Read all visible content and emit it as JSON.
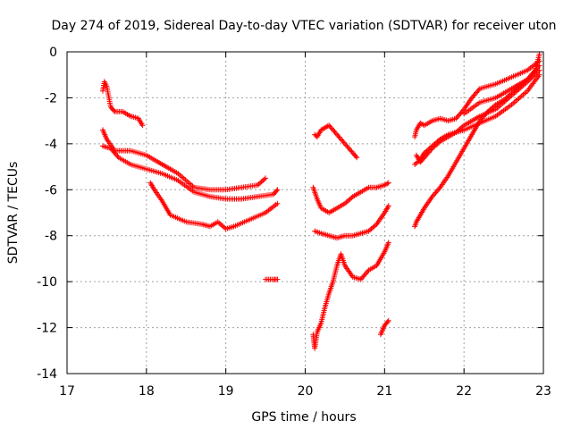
{
  "chart_data": {
    "type": "scatter",
    "title": "Day 274 of 2019, Sidereal Day-to-day VTEC variation (SDTVAR) for receiver uton",
    "xlabel": "GPS time / hours",
    "ylabel": "SDTVAR / TECUs",
    "xlim": [
      17,
      23
    ],
    "ylim": [
      -14,
      0
    ],
    "xticks": [
      17,
      18,
      19,
      20,
      21,
      22,
      23
    ],
    "yticks": [
      0,
      -2,
      -4,
      -6,
      -8,
      -10,
      -12,
      -14
    ],
    "grid": true,
    "marker": "+",
    "color": "#ff0000",
    "series": [
      {
        "name": "s1",
        "x": [
          17.45,
          17.47,
          17.5,
          17.55,
          17.6,
          17.7,
          17.8,
          17.9,
          17.95
        ],
        "y": [
          -1.7,
          -1.3,
          -1.5,
          -2.4,
          -2.6,
          -2.6,
          -2.8,
          -2.9,
          -3.2
        ]
      },
      {
        "name": "s2",
        "x": [
          17.45,
          17.5,
          17.6,
          17.7,
          17.8,
          18.0,
          18.2,
          18.4,
          18.6,
          18.8,
          19.0,
          19.2,
          19.4,
          19.5
        ],
        "y": [
          -3.4,
          -3.8,
          -4.3,
          -4.3,
          -4.3,
          -4.5,
          -4.9,
          -5.3,
          -5.9,
          -6.0,
          -6.0,
          -5.9,
          -5.8,
          -5.5
        ]
      },
      {
        "name": "s3",
        "x": [
          17.45,
          17.55,
          17.65,
          17.8,
          18.0,
          18.2,
          18.4,
          18.6,
          18.8,
          19.0,
          19.2,
          19.4,
          19.6,
          19.65
        ],
        "y": [
          -4.1,
          -4.2,
          -4.6,
          -4.9,
          -5.1,
          -5.3,
          -5.6,
          -6.1,
          -6.3,
          -6.4,
          -6.4,
          -6.3,
          -6.2,
          -6.0
        ]
      },
      {
        "name": "s4",
        "x": [
          18.05,
          18.1,
          18.2,
          18.3,
          18.5,
          18.7,
          18.8,
          18.9,
          19.0,
          19.1,
          19.3,
          19.5,
          19.65
        ],
        "y": [
          -5.7,
          -6.0,
          -6.5,
          -7.1,
          -7.4,
          -7.5,
          -7.6,
          -7.4,
          -7.7,
          -7.6,
          -7.3,
          -7.0,
          -6.6
        ]
      },
      {
        "name": "s5",
        "x": [
          19.5,
          19.6,
          19.65
        ],
        "y": [
          -9.9,
          -9.9,
          -9.9
        ]
      },
      {
        "name": "s6",
        "x": [
          20.12,
          20.15,
          20.2,
          20.25,
          20.3,
          20.4,
          20.5,
          20.6,
          20.65
        ],
        "y": [
          -3.6,
          -3.7,
          -3.4,
          -3.3,
          -3.2,
          -3.6,
          -4.0,
          -4.4,
          -4.6
        ]
      },
      {
        "name": "s7",
        "x": [
          20.1,
          20.15,
          20.2,
          20.3,
          20.4,
          20.5,
          20.6,
          20.7,
          20.8,
          20.9,
          21.0,
          21.05
        ],
        "y": [
          -5.9,
          -6.4,
          -6.8,
          -7.0,
          -6.8,
          -6.6,
          -6.3,
          -6.1,
          -5.9,
          -5.9,
          -5.8,
          -5.7
        ]
      },
      {
        "name": "s8",
        "x": [
          20.12,
          20.2,
          20.3,
          20.4,
          20.5,
          20.6,
          20.7,
          20.8,
          20.9,
          21.0,
          21.05
        ],
        "y": [
          -7.8,
          -7.9,
          -8.0,
          -8.1,
          -8.0,
          -8.0,
          -7.9,
          -7.8,
          -7.5,
          -7.0,
          -6.7
        ]
      },
      {
        "name": "s9",
        "x": [
          20.1,
          20.12,
          20.15,
          20.2,
          20.25,
          20.3,
          20.35,
          20.4,
          20.45,
          20.5,
          20.6,
          20.7,
          20.8,
          20.9,
          21.0,
          21.05
        ],
        "y": [
          -12.3,
          -12.9,
          -12.2,
          -11.8,
          -11.1,
          -10.5,
          -10.0,
          -9.3,
          -8.8,
          -9.3,
          -9.8,
          -9.9,
          -9.5,
          -9.3,
          -8.7,
          -8.3
        ]
      },
      {
        "name": "s10",
        "x": [
          20.95,
          21.0,
          21.05
        ],
        "y": [
          -12.3,
          -11.9,
          -11.7
        ]
      },
      {
        "name": "s11",
        "x": [
          21.38,
          21.4,
          21.45,
          21.5,
          21.6,
          21.7,
          21.8,
          21.9,
          22.0,
          22.1,
          22.2,
          22.4,
          22.6,
          22.8,
          22.95
        ],
        "y": [
          -3.7,
          -3.4,
          -3.1,
          -3.2,
          -3.0,
          -2.9,
          -3.0,
          -2.9,
          -2.5,
          -2.0,
          -1.6,
          -1.4,
          -1.1,
          -0.8,
          -0.4
        ]
      },
      {
        "name": "s12",
        "x": [
          21.4,
          21.45,
          21.5,
          21.6,
          21.7,
          21.8,
          21.9,
          22.0,
          22.2,
          22.4,
          22.6,
          22.8,
          22.95
        ],
        "y": [
          -4.5,
          -4.8,
          -4.6,
          -4.2,
          -3.9,
          -3.7,
          -3.5,
          -3.2,
          -2.8,
          -2.5,
          -1.9,
          -1.3,
          -0.8
        ]
      },
      {
        "name": "s13",
        "x": [
          21.38,
          21.45,
          21.5,
          21.6,
          21.7,
          21.8,
          21.9,
          22.0,
          22.2,
          22.4,
          22.6,
          22.8,
          22.95
        ],
        "y": [
          -4.9,
          -4.7,
          -4.4,
          -4.1,
          -3.8,
          -3.6,
          -3.5,
          -3.4,
          -3.1,
          -2.8,
          -2.3,
          -1.7,
          -1.0
        ]
      },
      {
        "name": "s14",
        "x": [
          21.38,
          21.4,
          21.45,
          21.5,
          21.6,
          21.7,
          21.8,
          21.9,
          22.0,
          22.1,
          22.2,
          22.3,
          22.4,
          22.5,
          22.6,
          22.7,
          22.8,
          22.9,
          22.95
        ],
        "y": [
          -7.6,
          -7.4,
          -7.1,
          -6.8,
          -6.3,
          -5.9,
          -5.4,
          -4.8,
          -4.2,
          -3.6,
          -3.0,
          -2.6,
          -2.3,
          -2.1,
          -1.8,
          -1.5,
          -1.2,
          -0.8,
          -0.1
        ]
      },
      {
        "name": "s15",
        "x": [
          22.0,
          22.2,
          22.4,
          22.6,
          22.8,
          22.95
        ],
        "y": [
          -2.7,
          -2.2,
          -2.0,
          -1.6,
          -1.2,
          -0.6
        ]
      }
    ]
  }
}
